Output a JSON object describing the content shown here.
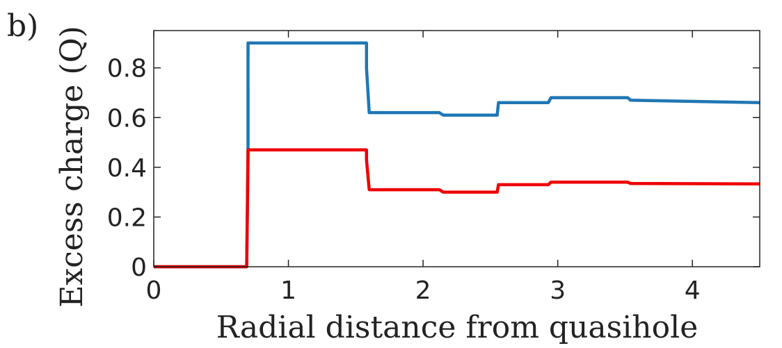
{
  "panel_label": "b)",
  "chart_data": {
    "type": "line",
    "title": "",
    "xlabel": "Radial distance from quasihole",
    "ylabel": "Excess charge (Q)",
    "xlim": [
      0,
      4.5
    ],
    "ylim": [
      0,
      0.95
    ],
    "x_ticks": [
      0,
      1,
      2,
      3,
      4
    ],
    "x_tick_labels": [
      "0",
      "1",
      "2",
      "3",
      "4"
    ],
    "y_ticks": [
      0,
      0.2,
      0.4,
      0.6,
      0.8
    ],
    "y_tick_labels": [
      "0",
      "0.2",
      "0.4",
      "0.6",
      "0.8"
    ],
    "grid": false,
    "series": [
      {
        "color": "#1f77b4",
        "x": [
          0,
          0.69,
          0.7,
          0.7,
          1.58,
          1.58,
          1.6,
          2.12,
          2.15,
          2.55,
          2.56,
          2.93,
          2.95,
          3.52,
          3.54,
          4.5
        ],
        "y": [
          0,
          0,
          0.44,
          0.9,
          0.9,
          0.8,
          0.62,
          0.62,
          0.61,
          0.61,
          0.66,
          0.66,
          0.68,
          0.68,
          0.67,
          0.66
        ]
      },
      {
        "color": "#ee0000",
        "x": [
          0,
          0.69,
          0.7,
          1.58,
          1.58,
          1.6,
          2.12,
          2.15,
          2.55,
          2.56,
          2.93,
          2.95,
          3.52,
          3.54,
          4.5
        ],
        "y": [
          0,
          0,
          0.47,
          0.47,
          0.43,
          0.31,
          0.31,
          0.3,
          0.3,
          0.33,
          0.33,
          0.34,
          0.34,
          0.335,
          0.333
        ]
      }
    ]
  }
}
